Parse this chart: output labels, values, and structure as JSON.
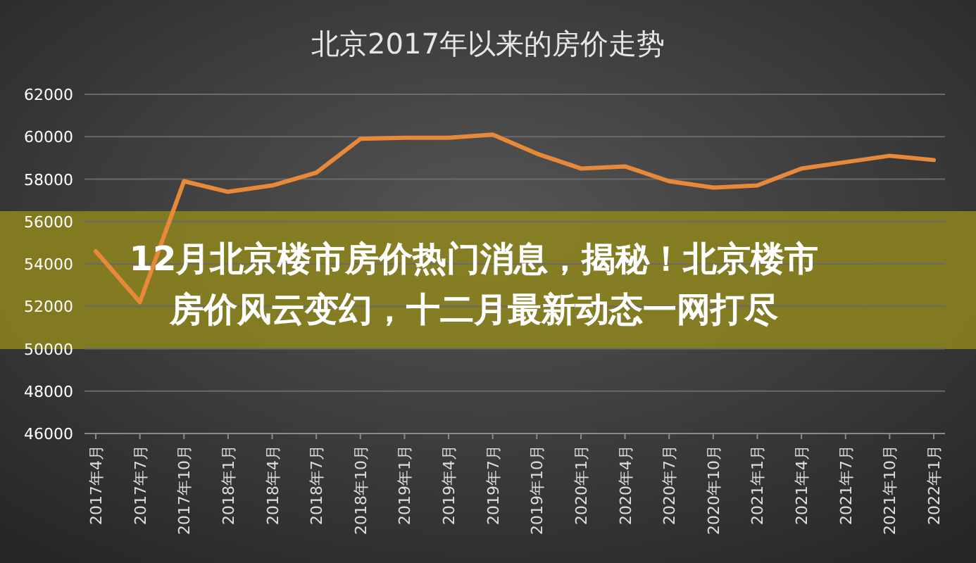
{
  "chart_data": {
    "type": "line",
    "title": "北京2017年以来的房价走势",
    "categories": [
      "2017年4月",
      "2017年7月",
      "2017年10月",
      "2018年1月",
      "2018年4月",
      "2018年7月",
      "2018年10月",
      "2019年1月",
      "2019年4月",
      "2019年7月",
      "2019年10月",
      "2020年1月",
      "2020年4月",
      "2020年7月",
      "2020年10月",
      "2021年1月",
      "2021年4月",
      "2021年7月",
      "2021年10月",
      "2022年1月"
    ],
    "series": [
      {
        "color": "#e8893a",
        "values": [
          54600,
          52200,
          57900,
          57400,
          57700,
          58300,
          59900,
          59950,
          59950,
          60100,
          59200,
          58500,
          58600,
          57900,
          57600,
          57700,
          58500,
          58800,
          59100,
          58900
        ]
      }
    ],
    "ylim": [
      46000,
      62000
    ],
    "yticks": [
      46000,
      48000,
      50000,
      52000,
      54000,
      56000,
      58000,
      60000,
      62000
    ],
    "grid": "y",
    "marker": "none",
    "line_style": "solid",
    "annotations": [
      "12月北京楼市房价热门消息，揭秘！北京楼市房价风云变幻，十二月最新动态一网打尽"
    ]
  }
}
